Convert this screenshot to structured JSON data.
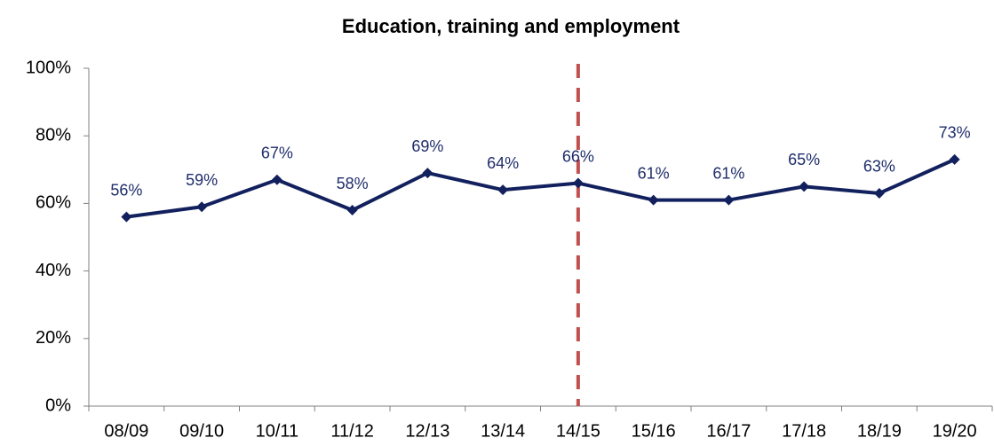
{
  "chart_data": {
    "type": "line",
    "title": "Education, training and employment",
    "categories": [
      "08/09",
      "09/10",
      "10/11",
      "11/12",
      "12/13",
      "13/14",
      "14/15",
      "15/16",
      "16/17",
      "17/18",
      "18/19",
      "19/20"
    ],
    "series": [
      {
        "color": "#12215e",
        "values": [
          56,
          59,
          67,
          58,
          69,
          64,
          66,
          61,
          61,
          65,
          63,
          73
        ],
        "value_labels": [
          "56%",
          "59%",
          "67%",
          "58%",
          "69%",
          "64%",
          "66%",
          "61%",
          "61%",
          "65%",
          "63%",
          "73%"
        ]
      }
    ],
    "ylim": [
      0,
      100
    ],
    "yticks": [
      {
        "value": 0,
        "label": "0%"
      },
      {
        "value": 20,
        "label": "20%"
      },
      {
        "value": 40,
        "label": "40%"
      },
      {
        "value": 60,
        "label": "60%"
      },
      {
        "value": 80,
        "label": "80%"
      },
      {
        "value": 100,
        "label": "100%"
      }
    ],
    "grid": false,
    "reference_line": {
      "x": "14/15",
      "color": "#c0504d",
      "style": "dashed"
    }
  }
}
